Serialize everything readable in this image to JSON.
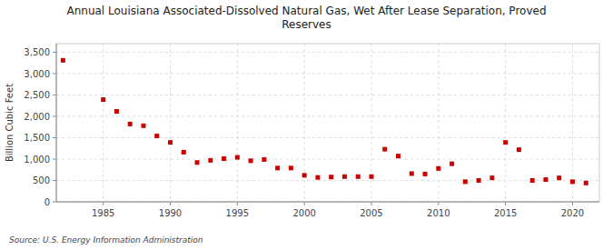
{
  "chart_data": {
    "type": "scatter",
    "title": "Annual Louisiana Associated-Dissolved Natural Gas, Wet After Lease Separation, Proved\nReserves",
    "ylabel": "Billion Cubic Feet",
    "source": "Source: U.S. Energy Information Administration",
    "color": "#cc0000",
    "marker": "square",
    "grid": true,
    "x": [
      1982,
      1985,
      1986,
      1987,
      1988,
      1989,
      1990,
      1991,
      1992,
      1993,
      1994,
      1995,
      1996,
      1997,
      1998,
      1999,
      2000,
      2001,
      2002,
      2003,
      2004,
      2005,
      2006,
      2007,
      2008,
      2009,
      2010,
      2011,
      2012,
      2013,
      2014,
      2015,
      2016,
      2017,
      2018,
      2019,
      2020,
      2021
    ],
    "values": [
      3310,
      2390,
      2115,
      1820,
      1780,
      1540,
      1390,
      1160,
      920,
      970,
      1010,
      1040,
      960,
      990,
      790,
      790,
      620,
      570,
      580,
      590,
      590,
      590,
      1230,
      1070,
      660,
      650,
      780,
      890,
      470,
      500,
      560,
      1390,
      1220,
      500,
      520,
      560,
      470,
      440
    ],
    "xlim": [
      1981.5,
      2022
    ],
    "xticks": [
      1985,
      1990,
      1995,
      2000,
      2005,
      2010,
      2015,
      2020
    ],
    "ylim": [
      0,
      3700
    ],
    "yticks": [
      0,
      500,
      {
        "value": 1000,
        "label": "1,000"
      },
      {
        "value": 1500,
        "label": "1,500"
      },
      {
        "value": 2000,
        "label": "2,000"
      },
      {
        "value": 2500,
        "label": "2,500"
      },
      {
        "value": 3000,
        "label": "3,000"
      },
      {
        "value": 3500,
        "label": "3,500"
      }
    ]
  }
}
